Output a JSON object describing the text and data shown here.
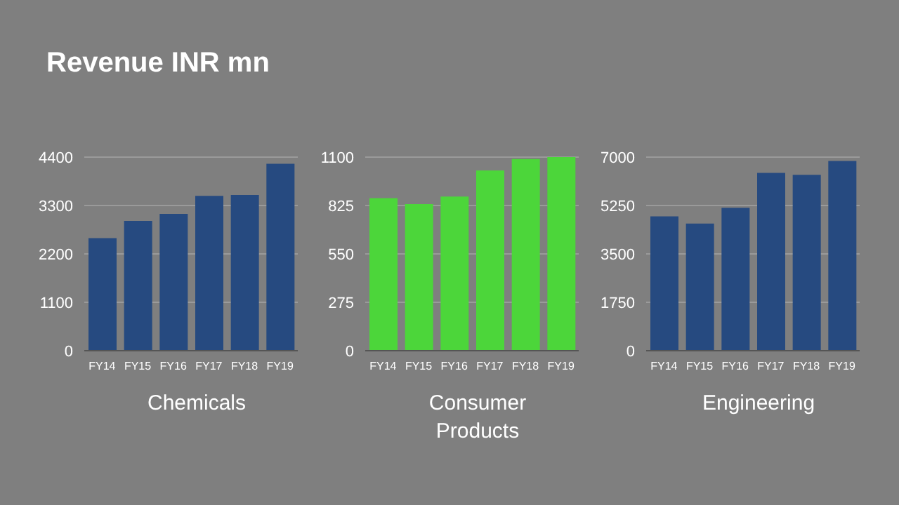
{
  "chart_data": [
    {
      "type": "bar",
      "title": "Revenue INR mn",
      "xlabel": "Chemicals",
      "categories": [
        "FY14",
        "FY15",
        "FY16",
        "FY17",
        "FY18",
        "FY19"
      ],
      "values": [
        2560,
        2950,
        3110,
        3520,
        3540,
        4250
      ],
      "color": "#264a80",
      "ylim": [
        0,
        4400
      ],
      "yticks": [
        0,
        1100,
        2200,
        3300,
        4400
      ],
      "grid": "y"
    },
    {
      "type": "bar",
      "xlabel": "Consumer Products",
      "categories": [
        "FY14",
        "FY15",
        "FY16",
        "FY17",
        "FY18",
        "FY19"
      ],
      "values": [
        867,
        833,
        876,
        1024,
        1089,
        1100
      ],
      "color": "#4cd63a",
      "ylim": [
        0,
        1100
      ],
      "yticks": [
        0,
        275,
        550,
        825,
        1100
      ],
      "grid": "y"
    },
    {
      "type": "bar",
      "xlabel": "Engineering",
      "categories": [
        "FY14",
        "FY15",
        "FY16",
        "FY17",
        "FY18",
        "FY19"
      ],
      "values": [
        4860,
        4600,
        5170,
        6430,
        6360,
        6860
      ],
      "color": "#264a80",
      "ylim": [
        0,
        7000
      ],
      "yticks": [
        0,
        1750,
        3500,
        5250,
        7000
      ],
      "grid": "y"
    }
  ]
}
